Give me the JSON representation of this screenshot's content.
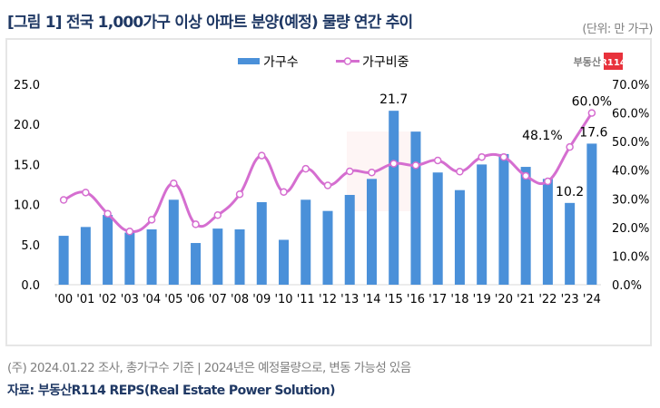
{
  "header": {
    "title": "[그림 1] 전국 1,000가구 이상 아파트 분양(예정) 물량 연간 추이",
    "unit": "(단위: 만 가구)"
  },
  "footer": {
    "note": "(주) 2024.01.22 조사, 총가구수 기준 | 2024년은 예정물량으로, 변동 가능성 있음",
    "source": "자료: 부동산R114 REPS(Real Estate Power Solution)"
  },
  "logo": {
    "text": "부동산",
    "badge": "R114",
    "badge_color": "#e8323c"
  },
  "colors": {
    "bar": "#4a90d9",
    "line": "#d56ed0",
    "title": "#1f3864"
  },
  "chart_data": {
    "type": "bar",
    "title": "전국 1,000가구 이상 아파트 분양(예정) 물량 연간 추이",
    "categories": [
      "'00",
      "'01",
      "'02",
      "'03",
      "'04",
      "'05",
      "'06",
      "'07",
      "'08",
      "'09",
      "'10",
      "'11",
      "'12",
      "'13",
      "'14",
      "'15",
      "'16",
      "'17",
      "'18",
      "'19",
      "'20",
      "'21",
      "'22",
      "'23",
      "'24"
    ],
    "series": [
      {
        "name": "가구수",
        "type": "bar",
        "axis": "left",
        "values": [
          6.1,
          7.2,
          8.7,
          6.5,
          6.9,
          10.6,
          5.2,
          7.0,
          6.9,
          10.3,
          5.6,
          10.6,
          9.2,
          11.2,
          13.2,
          21.7,
          19.1,
          14.0,
          11.8,
          15.0,
          16.3,
          14.7,
          13.2,
          10.2,
          17.6
        ]
      },
      {
        "name": "가구비중",
        "type": "line",
        "axis": "right",
        "values": [
          29.6,
          32.2,
          24.8,
          18.6,
          22.7,
          35.4,
          21.1,
          24.3,
          31.6,
          45.1,
          32.4,
          40.5,
          34.7,
          39.6,
          39.2,
          42.3,
          41.7,
          43.4,
          39.5,
          44.6,
          44.6,
          38.0,
          36.1,
          48.1,
          60.0
        ]
      }
    ],
    "y_left": {
      "ylim": [
        0,
        25
      ],
      "ticks": [
        "0.0",
        "5.0",
        "10.0",
        "15.0",
        "20.0",
        "25.0"
      ]
    },
    "y_right": {
      "ylim": [
        0,
        70
      ],
      "ticks": [
        "0.0%",
        "10.0%",
        "20.0%",
        "30.0%",
        "40.0%",
        "50.0%",
        "60.0%",
        "70.0%"
      ]
    },
    "data_labels": [
      {
        "series": "가구수",
        "index": 15,
        "text": "21.7"
      },
      {
        "series": "가구수",
        "index": 23,
        "text": "10.2"
      },
      {
        "series": "가구수",
        "index": 24,
        "text": "17.6"
      },
      {
        "series": "가구비중",
        "index": 23,
        "text": "48.1%"
      },
      {
        "series": "가구비중",
        "index": 24,
        "text": "60.0%"
      }
    ],
    "legend": {
      "position": "top-center",
      "entries": [
        "가구수",
        "가구비중"
      ]
    },
    "grid": false
  }
}
